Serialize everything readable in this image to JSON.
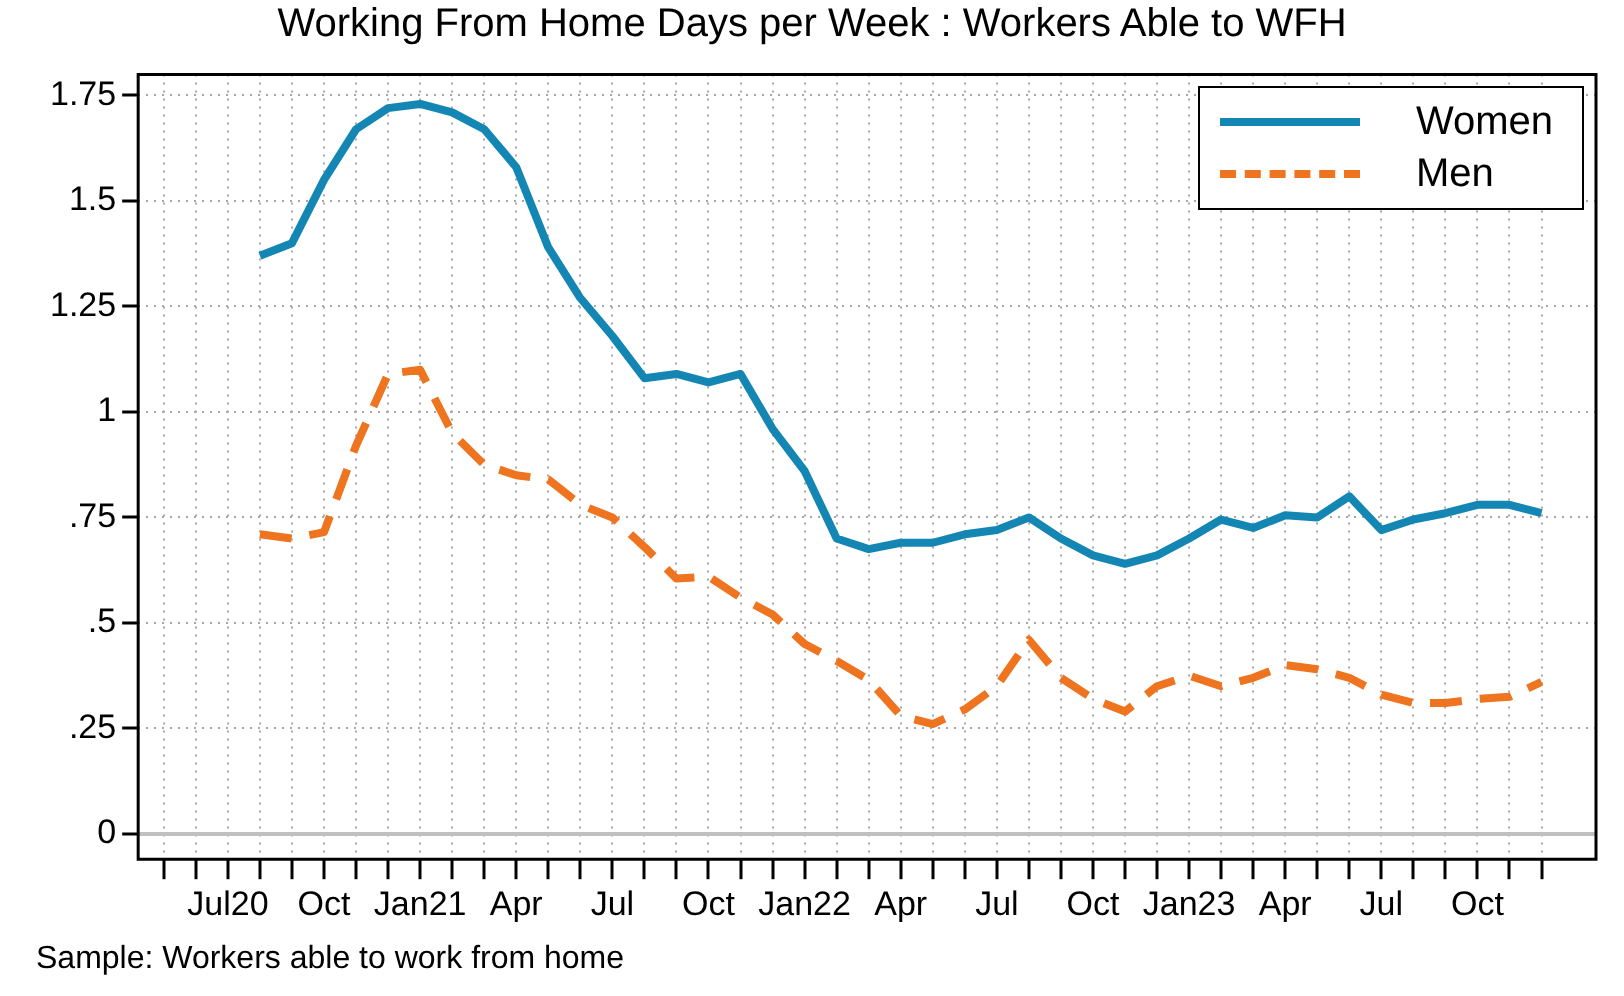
{
  "chart_data": {
    "type": "line",
    "title": "Working From Home Days per Week : Workers Able to WFH",
    "x": [
      "2020-08",
      "2020-09",
      "2020-10",
      "2020-11",
      "2020-12",
      "2021-01",
      "2021-02",
      "2021-03",
      "2021-04",
      "2021-05",
      "2021-06",
      "2021-07",
      "2021-08",
      "2021-09",
      "2021-10",
      "2021-11",
      "2021-12",
      "2022-01",
      "2022-02",
      "2022-03",
      "2022-04",
      "2022-05",
      "2022-06",
      "2022-07",
      "2022-08",
      "2022-09",
      "2022-10",
      "2022-11",
      "2022-12",
      "2023-01",
      "2023-02",
      "2023-03",
      "2023-04",
      "2023-05",
      "2023-06",
      "2023-07",
      "2023-08",
      "2023-09",
      "2023-10",
      "2023-11",
      "2023-12"
    ],
    "series": [
      {
        "name": "Women",
        "color": "#1386b3",
        "line_style": "solid",
        "values": [
          1.37,
          1.4,
          1.55,
          1.67,
          1.72,
          1.73,
          1.71,
          1.67,
          1.58,
          1.39,
          1.27,
          1.18,
          1.08,
          1.09,
          1.07,
          1.09,
          0.96,
          0.86,
          0.7,
          0.675,
          0.69,
          0.69,
          0.71,
          0.72,
          0.75,
          0.7,
          0.66,
          0.64,
          0.66,
          0.7,
          0.745,
          0.725,
          0.755,
          0.75,
          0.8,
          0.72,
          0.745,
          0.76,
          0.78,
          0.78,
          0.76
        ]
      },
      {
        "name": "Men",
        "color": "#ee7420",
        "line_style": "dashed",
        "values": [
          0.71,
          0.7,
          0.715,
          0.92,
          1.09,
          1.1,
          0.95,
          0.875,
          0.85,
          0.84,
          0.78,
          0.75,
          0.68,
          0.605,
          0.61,
          0.56,
          0.52,
          0.45,
          0.41,
          0.365,
          0.28,
          0.26,
          0.295,
          0.35,
          0.46,
          0.37,
          0.32,
          0.29,
          0.35,
          0.375,
          0.35,
          0.37,
          0.4,
          0.39,
          0.37,
          0.33,
          0.31,
          0.31,
          0.32,
          0.325,
          0.36
        ]
      }
    ],
    "xlim": [
      "2020-04-07",
      "2024-01-22"
    ],
    "xticks": [
      {
        "value": "2020-05",
        "label": null
      },
      {
        "value": "2020-06",
        "label": null
      },
      {
        "value": "2020-07",
        "label": "Jul20"
      },
      {
        "value": "2020-08",
        "label": null
      },
      {
        "value": "2020-09",
        "label": null
      },
      {
        "value": "2020-10",
        "label": "Oct"
      },
      {
        "value": "2020-11",
        "label": null
      },
      {
        "value": "2020-12",
        "label": null
      },
      {
        "value": "2021-01",
        "label": "Jan21"
      },
      {
        "value": "2021-02",
        "label": null
      },
      {
        "value": "2021-03",
        "label": null
      },
      {
        "value": "2021-04",
        "label": "Apr"
      },
      {
        "value": "2021-05",
        "label": null
      },
      {
        "value": "2021-06",
        "label": null
      },
      {
        "value": "2021-07",
        "label": "Jul"
      },
      {
        "value": "2021-08",
        "label": null
      },
      {
        "value": "2021-09",
        "label": null
      },
      {
        "value": "2021-10",
        "label": "Oct"
      },
      {
        "value": "2021-11",
        "label": null
      },
      {
        "value": "2021-12",
        "label": null
      },
      {
        "value": "2022-01",
        "label": "Jan22"
      },
      {
        "value": "2022-02",
        "label": null
      },
      {
        "value": "2022-03",
        "label": null
      },
      {
        "value": "2022-04",
        "label": "Apr"
      },
      {
        "value": "2022-05",
        "label": null
      },
      {
        "value": "2022-06",
        "label": null
      },
      {
        "value": "2022-07",
        "label": "Jul"
      },
      {
        "value": "2022-08",
        "label": null
      },
      {
        "value": "2022-09",
        "label": null
      },
      {
        "value": "2022-10",
        "label": "Oct"
      },
      {
        "value": "2022-11",
        "label": null
      },
      {
        "value": "2022-12",
        "label": null
      },
      {
        "value": "2023-01",
        "label": "Jan23"
      },
      {
        "value": "2023-02",
        "label": null
      },
      {
        "value": "2023-03",
        "label": null
      },
      {
        "value": "2023-04",
        "label": "Apr"
      },
      {
        "value": "2023-05",
        "label": null
      },
      {
        "value": "2023-06",
        "label": null
      },
      {
        "value": "2023-07",
        "label": "Jul"
      },
      {
        "value": "2023-08",
        "label": null
      },
      {
        "value": "2023-09",
        "label": null
      },
      {
        "value": "2023-10",
        "label": "Oct"
      },
      {
        "value": "2023-11",
        "label": null
      },
      {
        "value": "2023-12",
        "label": null
      }
    ],
    "ylim": [
      -0.06,
      1.8
    ],
    "yticks": [
      0,
      {
        "value": 0.25,
        "label": ".25"
      },
      {
        "value": 0.5,
        "label": ".5"
      },
      {
        "value": 0.75,
        "label": ".75"
      },
      1,
      1.25,
      1.5,
      1.75
    ],
    "ref_lines": [
      {
        "axis": "y",
        "value": 0,
        "color": "#c0c0c0"
      }
    ],
    "grid": true,
    "legend": "top right",
    "marker": "none",
    "annotations": [
      "Sample: Workers able to work from home"
    ]
  }
}
